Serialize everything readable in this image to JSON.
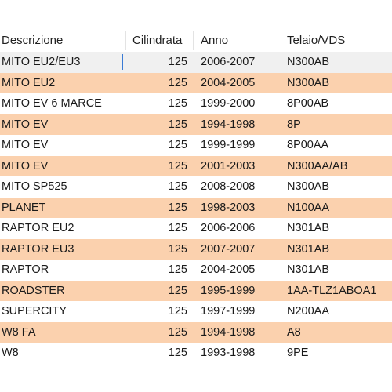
{
  "table": {
    "headers": {
      "descrizione": "Descrizione",
      "cilindrata": "Cilindrata",
      "anno": "Anno",
      "telaio": "Telaio/VDS"
    },
    "rows": [
      {
        "descrizione": "MITO EU2/EU3",
        "cilindrata": "125",
        "anno": "2006-2007",
        "telaio": "N300AB"
      },
      {
        "descrizione": "MITO EU2",
        "cilindrata": "125",
        "anno": "2004-2005",
        "telaio": "N300AB"
      },
      {
        "descrizione": "MITO EV 6 MARCE",
        "cilindrata": "125",
        "anno": "1999-2000",
        "telaio": "8P00AB"
      },
      {
        "descrizione": "MITO EV",
        "cilindrata": "125",
        "anno": "1994-1998",
        "telaio": "8P"
      },
      {
        "descrizione": "MITO EV",
        "cilindrata": "125",
        "anno": "1999-1999",
        "telaio": "8P00AA"
      },
      {
        "descrizione": "MITO EV",
        "cilindrata": "125",
        "anno": "2001-2003",
        "telaio": "N300AA/AB"
      },
      {
        "descrizione": "MITO SP525",
        "cilindrata": "125",
        "anno": "2008-2008",
        "telaio": "N300AB"
      },
      {
        "descrizione": "PLANET",
        "cilindrata": "125",
        "anno": "1998-2003",
        "telaio": "N100AA"
      },
      {
        "descrizione": "RAPTOR EU2",
        "cilindrata": "125",
        "anno": "2006-2006",
        "telaio": "N301AB"
      },
      {
        "descrizione": "RAPTOR EU3",
        "cilindrata": "125",
        "anno": "2007-2007",
        "telaio": "N301AB"
      },
      {
        "descrizione": "RAPTOR",
        "cilindrata": "125",
        "anno": "2004-2005",
        "telaio": "N301AB"
      },
      {
        "descrizione": "ROADSTER",
        "cilindrata": "125",
        "anno": "1995-1999",
        "telaio": "1AA-TLZ1ABOA1"
      },
      {
        "descrizione": "SUPERCITY",
        "cilindrata": "125",
        "anno": "1997-1999",
        "telaio": "N200AA"
      },
      {
        "descrizione": "W8 FA",
        "cilindrata": "125",
        "anno": "1994-1998",
        "telaio": "A8"
      },
      {
        "descrizione": "W8",
        "cilindrata": "125",
        "anno": "1993-1998",
        "telaio": "9PE"
      }
    ]
  },
  "colors": {
    "alt_row": "#fbd1ae",
    "selected_row": "#f0f0f0",
    "caret": "#3a7bd5"
  }
}
